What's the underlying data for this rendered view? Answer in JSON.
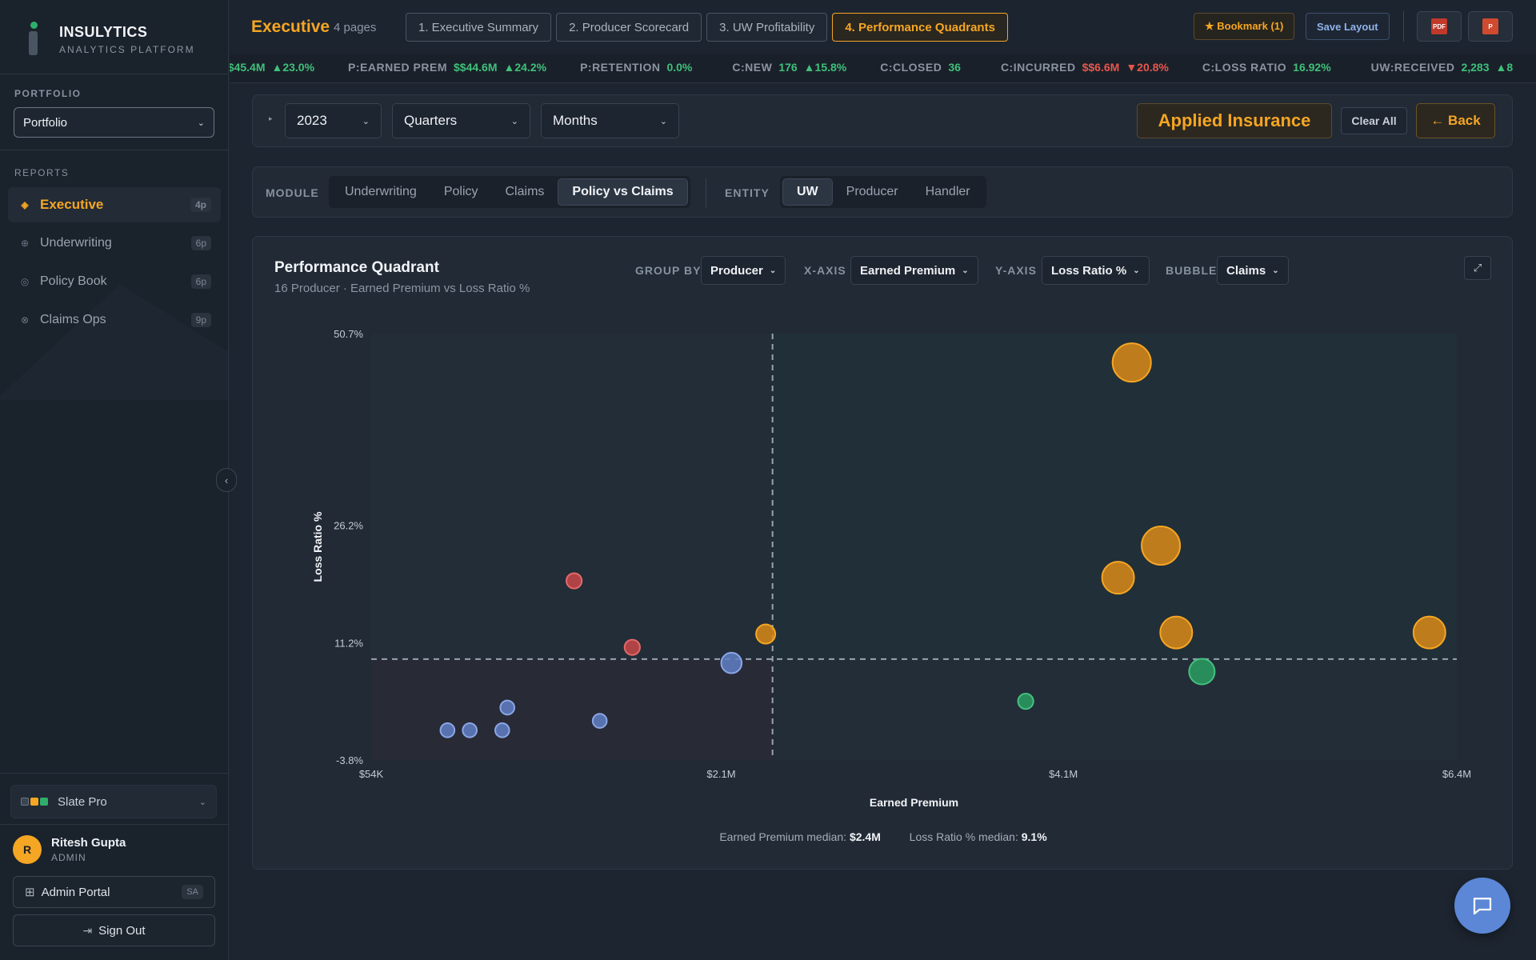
{
  "brand": {
    "name": "INSULYTICS",
    "tagline": "ANALYTICS PLATFORM"
  },
  "sidebar": {
    "portfolio_label": "PORTFOLIO",
    "portfolio_value": "Portfolio",
    "reports_label": "REPORTS",
    "items": [
      {
        "label": "Executive",
        "badge": "4p",
        "icon": "diamond-icon",
        "active": true
      },
      {
        "label": "Underwriting",
        "badge": "6p",
        "icon": "circle-plus-icon"
      },
      {
        "label": "Policy Book",
        "badge": "6p",
        "icon": "ring-icon"
      },
      {
        "label": "Claims Ops",
        "badge": "9p",
        "icon": "circle-x-icon"
      }
    ],
    "theme": "Slate Pro",
    "user": {
      "initial": "R",
      "name": "Ritesh Gupta",
      "role": "ADMIN"
    },
    "admin_portal": "Admin Portal",
    "admin_tag": "SA",
    "sign_out": "Sign Out"
  },
  "topbar": {
    "page_name": "Executive",
    "page_count": "4 pages",
    "tabs": [
      "1. Executive Summary",
      "2. Producer Scorecard",
      "3. UW Profitability",
      "4. Performance Quadrants"
    ],
    "active_tab": 3,
    "bookmark": "★ Bookmark (1)",
    "save_layout": "Save Layout"
  },
  "ticker": [
    {
      "label": "",
      "value": "$$45.4M",
      "change": "▲23.0%"
    },
    {
      "label": "P:EARNED PREM",
      "value": "$$44.6M",
      "change": "▲24.2%"
    },
    {
      "label": "P:RETENTION",
      "value": "0.0%",
      "change": ""
    },
    {
      "label": "C:NEW",
      "value": "176",
      "change": "▲15.8%"
    },
    {
      "label": "C:CLOSED",
      "value": "36",
      "change": ""
    },
    {
      "label": "C:INCURRED",
      "value": "$$6.6M",
      "change": "▼20.8%",
      "negative": true
    },
    {
      "label": "C:LOSS RATIO",
      "value": "16.92%",
      "change": ""
    },
    {
      "label": "UW:RECEIVED",
      "value": "2,283",
      "change": "▲8"
    }
  ],
  "filters": {
    "year": "2023",
    "period": "Quarters",
    "granularity": "Months",
    "company": "Applied Insurance",
    "clear_all": "Clear All",
    "back": "← Back"
  },
  "module_bar": {
    "module_label": "MODULE",
    "modules": [
      "Underwriting",
      "Policy",
      "Claims",
      "Policy vs Claims"
    ],
    "active_module": 3,
    "entity_label": "ENTITY",
    "entities": [
      "UW",
      "Producer",
      "Handler"
    ],
    "active_entity": 0
  },
  "chart_panel": {
    "title": "Performance Quadrant",
    "subtitle": "16 Producer · Earned Premium vs Loss Ratio %",
    "group_by_label": "GROUP BY",
    "group_by": "Producer",
    "x_axis_label": "X-AXIS",
    "x_axis": "Earned Premium",
    "y_axis_label": "Y-AXIS",
    "y_axis": "Loss Ratio %",
    "bubble_label": "BUBBLE",
    "bubble": "Claims",
    "median_x_label": "Earned Premium median:",
    "median_x": "$2.4M",
    "median_y_label": "Loss Ratio % median:",
    "median_y": "9.1%"
  },
  "colors": {
    "accent": "#f5a623",
    "orange": "#e89a1f",
    "red": "#e05252",
    "blue": "#6a8fd8",
    "green": "#2fae6b",
    "background": "#1d2530"
  },
  "chart_data": {
    "type": "scatter",
    "title": "Performance Quadrant",
    "xlabel": "Earned Premium",
    "ylabel": "Loss Ratio %",
    "xlim": [
      54,
      6400
    ],
    "ylim": [
      -3.8,
      50.7
    ],
    "x_unit": "$K",
    "xticks": [
      {
        "value": 54,
        "label": "$54K"
      },
      {
        "value": 2100,
        "label": "$2.1M"
      },
      {
        "value": 4100,
        "label": "$4.1M"
      },
      {
        "value": 6400,
        "label": "$6.4M"
      }
    ],
    "yticks": [
      {
        "value": 50.7,
        "label": "50.7%"
      },
      {
        "value": 26.2,
        "label": "26.2%"
      },
      {
        "value": 11.2,
        "label": "11.2%"
      },
      {
        "value": -3.8,
        "label": "-3.8%"
      }
    ],
    "median_x": 2400,
    "median_y": 9.1,
    "points": [
      {
        "x": 4500,
        "y": 47.0,
        "size": 3,
        "color": "orange"
      },
      {
        "x": 4670,
        "y": 23.6,
        "size": 3,
        "color": "orange"
      },
      {
        "x": 4420,
        "y": 19.5,
        "size": 2.5,
        "color": "orange"
      },
      {
        "x": 4760,
        "y": 12.5,
        "size": 2.5,
        "color": "orange"
      },
      {
        "x": 6240,
        "y": 12.5,
        "size": 2.5,
        "color": "orange"
      },
      {
        "x": 2360,
        "y": 12.3,
        "size": 1.5,
        "color": "orange"
      },
      {
        "x": 4910,
        "y": 7.5,
        "size": 2,
        "color": "green"
      },
      {
        "x": 3880,
        "y": 3.7,
        "size": 1.2,
        "color": "green"
      },
      {
        "x": 1240,
        "y": 19.1,
        "size": 1.2,
        "color": "red"
      },
      {
        "x": 1580,
        "y": 10.6,
        "size": 1.2,
        "color": "red"
      },
      {
        "x": 2160,
        "y": 8.6,
        "size": 1.6,
        "color": "blue"
      },
      {
        "x": 850,
        "y": 2.9,
        "size": 1.1,
        "color": "blue"
      },
      {
        "x": 1390,
        "y": 1.2,
        "size": 1.1,
        "color": "blue"
      },
      {
        "x": 500,
        "y": 0.0,
        "size": 1.1,
        "color": "blue"
      },
      {
        "x": 630,
        "y": 0.0,
        "size": 1.1,
        "color": "blue"
      },
      {
        "x": 820,
        "y": 0.0,
        "size": 1.1,
        "color": "blue"
      }
    ],
    "grid": false
  }
}
